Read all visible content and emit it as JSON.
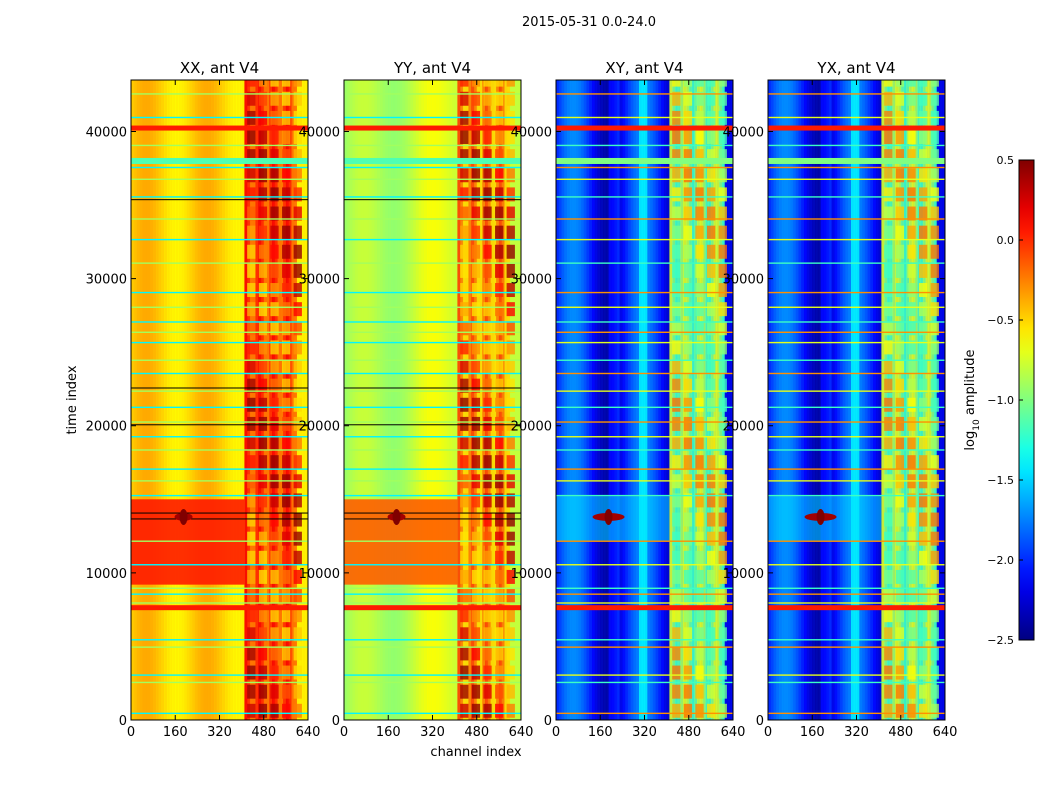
{
  "suptitle": "2015-05-31 0.0-24.0",
  "chart_data": {
    "type": "heatmap",
    "title": "2015-05-31 0.0-24.0",
    "xlabel": "channel index",
    "ylabel": "time index",
    "xlim": [
      0,
      640
    ],
    "ylim": [
      0,
      43500
    ],
    "x_ticks": [
      0,
      160,
      320,
      480,
      640
    ],
    "y_ticks": [
      0,
      10000,
      20000,
      30000,
      40000
    ],
    "x_tick_labels": [
      "0",
      "160",
      "320",
      "480",
      "640"
    ],
    "y_tick_labels": [
      "0",
      "10000",
      "20000",
      "30000",
      "40000"
    ],
    "colormap": "jet",
    "panels": [
      {
        "title": "XX, ant V4",
        "mean_level": -0.3
      },
      {
        "title": "YY, ant V4",
        "mean_level": -0.8
      },
      {
        "title": "XY, ant V4",
        "mean_level": -1.9
      },
      {
        "title": "YX, ant V4",
        "mean_level": -1.9
      }
    ],
    "colorbar": {
      "label_main": "log",
      "label_sub": "10",
      "label_tail": " amplitude",
      "range": [
        -2.5,
        0.5
      ],
      "ticks": [
        0.5,
        0.0,
        -0.5,
        -1.0,
        -1.5,
        -2.0,
        -2.5
      ],
      "tick_labels": [
        "0.5",
        "0.0",
        "−0.5",
        "−1.0",
        "−1.5",
        "−2.0",
        "−2.5"
      ]
    },
    "flagged_rows_red": [
      7600,
      40200
    ],
    "bright_feature": {
      "channel": 190,
      "time": 13800
    },
    "grid": false
  }
}
